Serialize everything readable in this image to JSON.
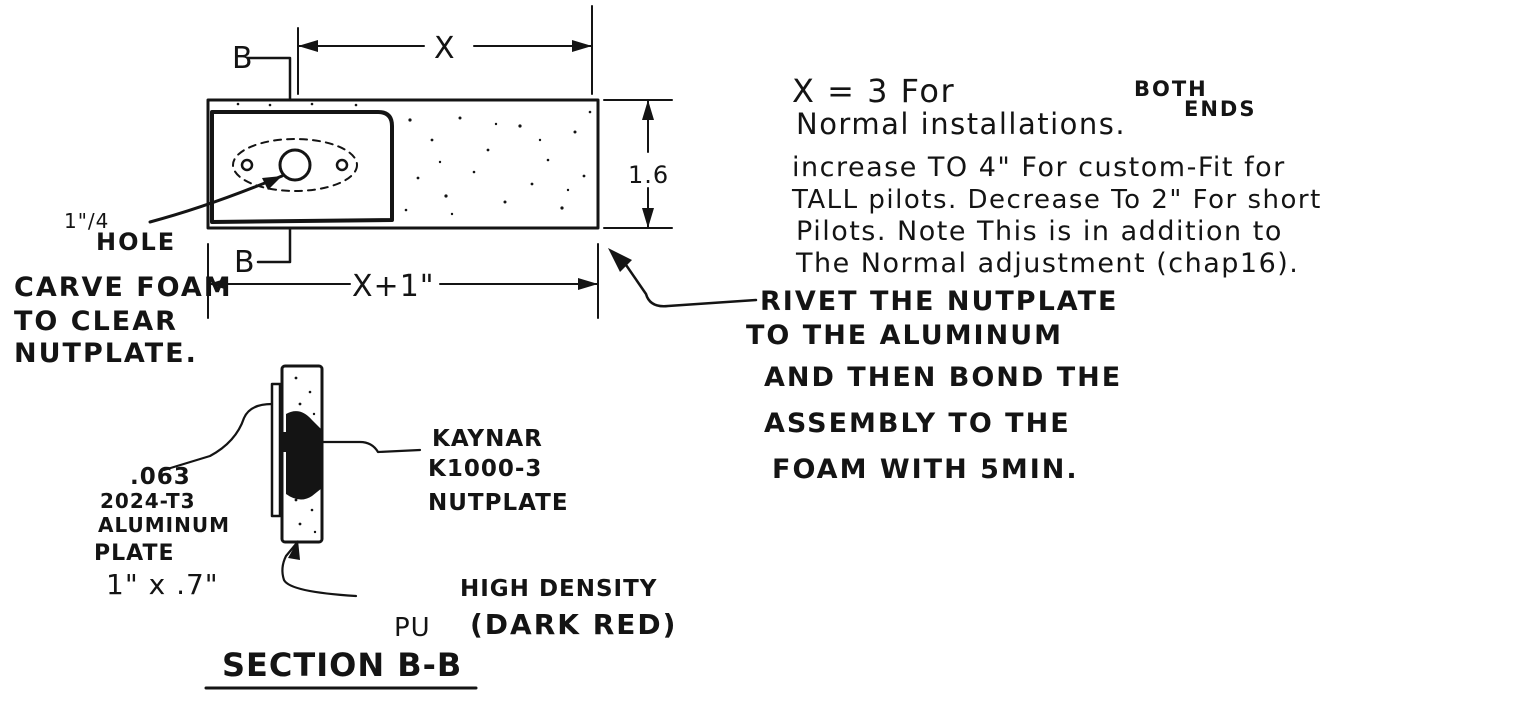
{
  "plan_view": {
    "section_mark_top": "B",
    "section_mark_bottom": "B",
    "dim_x": "X",
    "dim_x_plus": "X+1\"",
    "dim_height": "1.6",
    "hole_fraction": "1\"/4",
    "hole_label": "HOLE",
    "carve_note": [
      "CARVE FOAM",
      "TO CLEAR",
      "NUTPLATE."
    ]
  },
  "notes": {
    "line1": "X = 3 For",
    "both": "BOTH",
    "ends": "ENDS",
    "line2": "Normal installations.",
    "line3": "increase TO 4\" For custom-Fit for",
    "line4": "TALL pilots. Decrease To 2\" For short",
    "line5": "Pilots. Note This is in addition to",
    "line6": "The Normal adjustment (chap16)."
  },
  "rivet_note": [
    "RIVET THE NUTPLATE",
    "TO THE ALUMINUM",
    "AND THEN BOND THE",
    "ASSEMBLY TO THE",
    "FOAM WITH 5MIN."
  ],
  "section": {
    "plate_label": [
      ".063",
      "2024-T3",
      "ALUMINUM",
      "PLATE",
      "1\" x .7\""
    ],
    "nutplate_label": [
      "KAYNAR",
      "K1000-3",
      "NUTPLATE"
    ],
    "pu_label": "PU",
    "density_label": [
      "HIGH DENSITY",
      "(DARK RED)"
    ],
    "title": "SECTION B-B"
  }
}
